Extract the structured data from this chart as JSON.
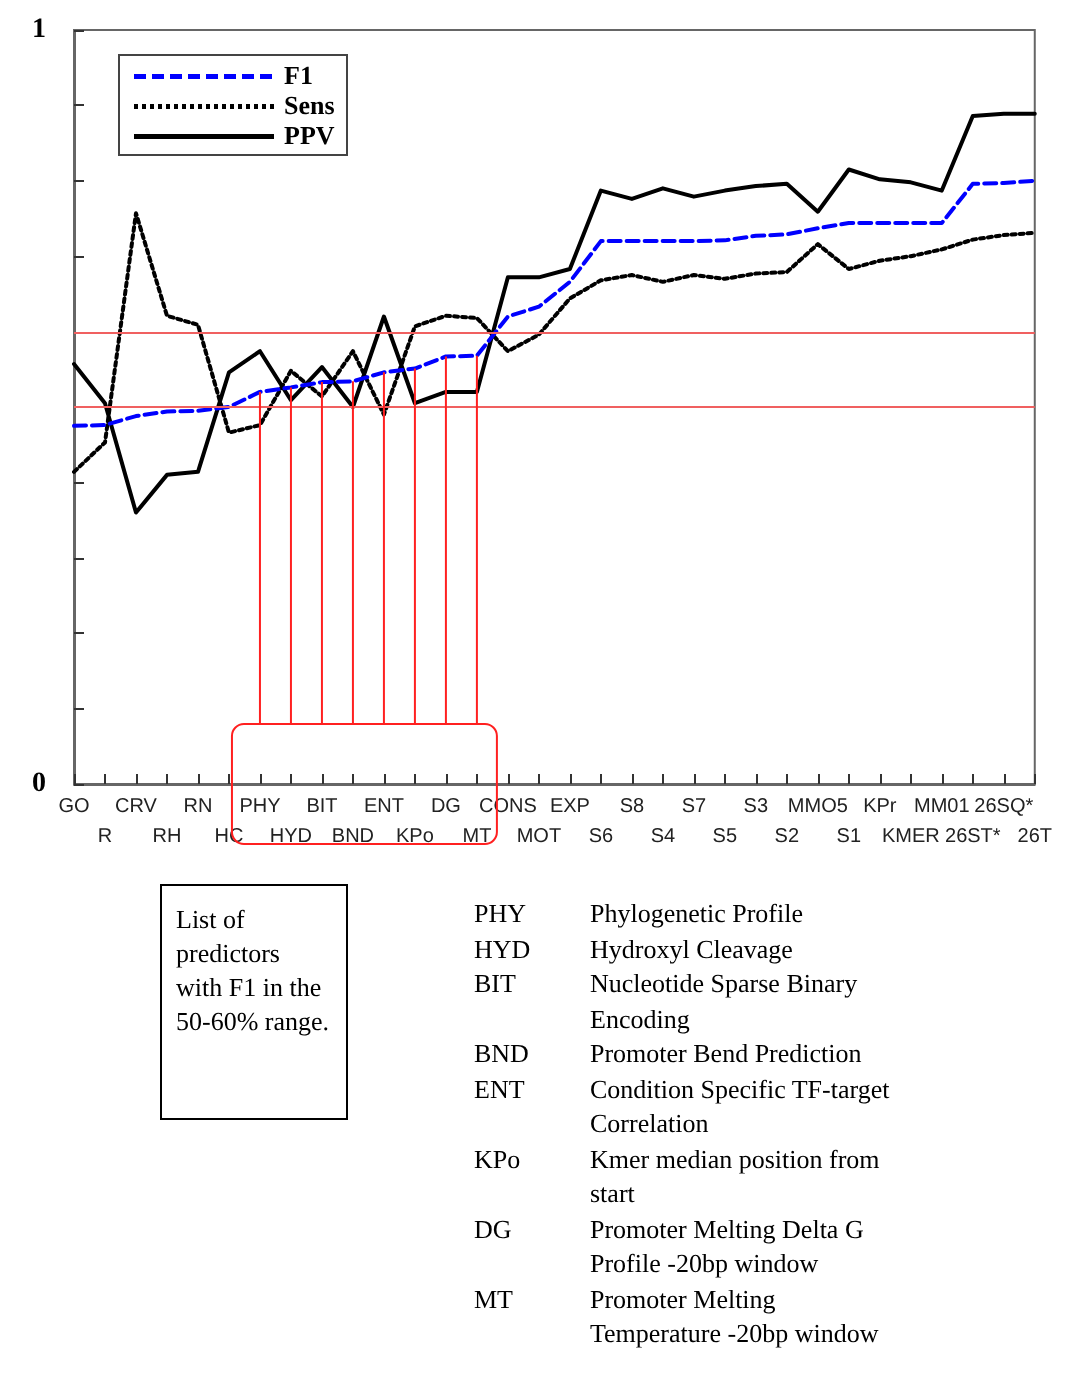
{
  "chart_data": {
    "type": "line",
    "categories": [
      "GO",
      "R",
      "CRV",
      "RH",
      "RN",
      "HC",
      "PHY",
      "HYD",
      "BIT",
      "BND",
      "ENT",
      "KPo",
      "DG",
      "MT",
      "CONS",
      "MOT",
      "EXP",
      "S6",
      "S8",
      "S4",
      "S7",
      "S5",
      "S3",
      "S2",
      "MMO5",
      "S1",
      "KPr",
      "KMER",
      "MM01",
      "26ST*",
      "26SQ*",
      "26T"
    ],
    "series": [
      {
        "name": "F1",
        "color": "#0000ff",
        "line_style": "dashed",
        "values": [
          0.475,
          0.476,
          0.488,
          0.494,
          0.495,
          0.5,
          0.52,
          0.526,
          0.533,
          0.534,
          0.546,
          0.551,
          0.567,
          0.568,
          0.62,
          0.633,
          0.666,
          0.72,
          0.72,
          0.72,
          0.72,
          0.721,
          0.727,
          0.729,
          0.737,
          0.744,
          0.744,
          0.744,
          0.744,
          0.796,
          0.797,
          0.8
        ]
      },
      {
        "name": "Sens",
        "color": "#000000",
        "line_style": "dotted",
        "values": [
          0.414,
          0.453,
          0.757,
          0.621,
          0.609,
          0.466,
          0.476,
          0.548,
          0.514,
          0.574,
          0.49,
          0.607,
          0.621,
          0.618,
          0.574,
          0.596,
          0.644,
          0.668,
          0.675,
          0.666,
          0.675,
          0.67,
          0.677,
          0.679,
          0.716,
          0.683,
          0.694,
          0.7,
          0.709,
          0.722,
          0.728,
          0.731
        ]
      },
      {
        "name": "PPV",
        "color": "#000000",
        "line_style": "solid",
        "values": [
          0.557,
          0.505,
          0.36,
          0.41,
          0.414,
          0.546,
          0.574,
          0.509,
          0.553,
          0.5,
          0.62,
          0.505,
          0.52,
          0.52,
          0.672,
          0.672,
          0.683,
          0.787,
          0.776,
          0.79,
          0.779,
          0.787,
          0.793,
          0.796,
          0.759,
          0.815,
          0.802,
          0.798,
          0.787,
          0.886,
          0.889,
          0.889
        ]
      }
    ],
    "ylim": [
      0,
      1
    ],
    "yticks": [
      0,
      {
        "value": 0.1,
        "label": null
      },
      {
        "value": 0.2,
        "label": null
      },
      {
        "value": 0.3,
        "label": null
      },
      {
        "value": 0.4,
        "label": null
      },
      {
        "value": 0.5,
        "label": null
      },
      {
        "value": 0.6,
        "label": null
      },
      {
        "value": 0.7,
        "label": null
      },
      {
        "value": 0.8,
        "label": null
      },
      {
        "value": 0.9,
        "label": null
      },
      1
    ],
    "ref_lines": [
      {
        "axis": "y",
        "value": 0.6,
        "color": "#f06060"
      },
      {
        "axis": "y",
        "value": 0.5,
        "color": "#f06060"
      }
    ],
    "grid": false,
    "legend": "top left",
    "marker": "none",
    "annotations": [
      "List of predictors with F1 in the 50-60% range.",
      "PHY Phylogenetic Profile",
      "HYD Hydroxyl Cleavage",
      "BIT Nucleotide Sparse Binary Encoding",
      "BND Promoter Bend Prediction",
      "ENT Condition Specific TF-target Correlation",
      "KPo Kmer median position from start",
      "DG Promoter Melting Delta G Profile -20bp window",
      "MT Promoter Melting Temperature -20bp window"
    ]
  }
}
